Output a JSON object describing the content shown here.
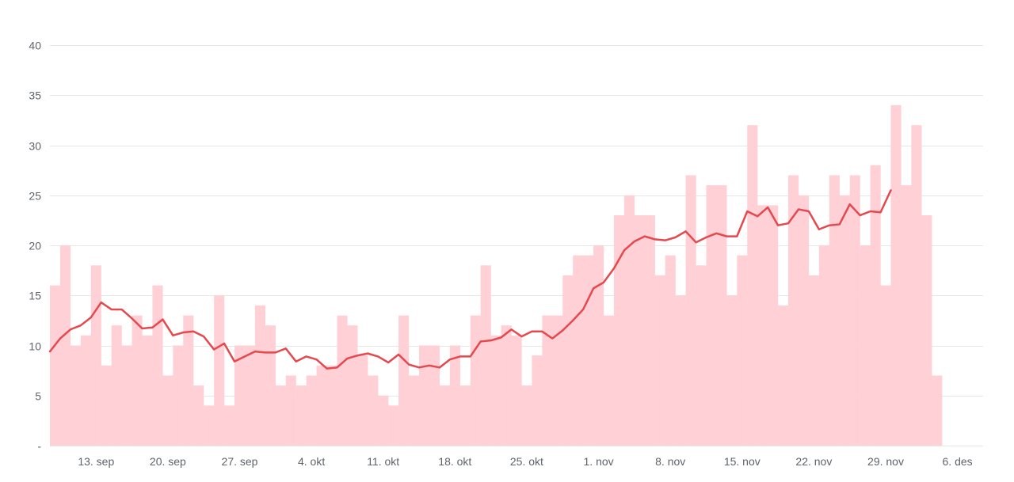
{
  "chart_data": {
    "type": "bar",
    "title": "",
    "xlabel": "",
    "ylabel": "",
    "ylim": [
      0,
      40
    ],
    "y_ticks": [
      {
        "value": 0,
        "label": "-"
      },
      {
        "value": 5,
        "label": "5"
      },
      {
        "value": 10,
        "label": "10"
      },
      {
        "value": 15,
        "label": "15"
      },
      {
        "value": 20,
        "label": "20"
      },
      {
        "value": 25,
        "label": "25"
      },
      {
        "value": 30,
        "label": "30"
      },
      {
        "value": 35,
        "label": "35"
      },
      {
        "value": 40,
        "label": "40"
      }
    ],
    "x_ticks": [
      {
        "date": "2020-09-13",
        "label": "13. sep"
      },
      {
        "date": "2020-09-20",
        "label": "20. sep"
      },
      {
        "date": "2020-09-27",
        "label": "27. sep"
      },
      {
        "date": "2020-10-04",
        "label": "4. okt"
      },
      {
        "date": "2020-10-11",
        "label": "11. okt"
      },
      {
        "date": "2020-10-18",
        "label": "18. okt"
      },
      {
        "date": "2020-10-25",
        "label": "25. okt"
      },
      {
        "date": "2020-11-01",
        "label": "1. nov"
      },
      {
        "date": "2020-11-08",
        "label": "8. nov"
      },
      {
        "date": "2020-11-15",
        "label": "15. nov"
      },
      {
        "date": "2020-11-22",
        "label": "22. nov"
      },
      {
        "date": "2020-11-29",
        "label": "29. nov"
      },
      {
        "date": "2020-12-06",
        "label": "6. des"
      }
    ],
    "x_start": "2020-09-09",
    "x_end": "2020-12-09",
    "grid": true,
    "colors": {
      "bars": "#ffd0d5",
      "line": "#e5484d",
      "grid": "#e6e6e6",
      "tick_text": "#5f6368"
    },
    "series": [
      {
        "type": "bar",
        "start_date": "2020-09-09",
        "values": [
          16,
          20,
          10,
          11,
          18,
          8,
          12,
          10,
          13,
          11,
          16,
          7,
          10,
          13,
          6,
          4,
          15,
          4,
          10,
          10,
          14,
          12,
          6,
          7,
          6,
          7,
          8,
          8,
          13,
          12,
          9,
          7,
          5,
          4,
          13,
          7,
          10,
          10,
          6,
          10,
          6,
          13,
          18,
          11,
          12,
          11,
          6,
          9,
          13,
          13,
          17,
          19,
          19,
          20,
          13,
          23,
          25,
          23,
          23,
          17,
          19,
          15,
          27,
          18,
          26,
          26,
          15,
          19,
          32,
          24,
          24,
          14,
          27,
          25,
          17,
          20,
          27,
          25,
          27,
          20,
          28,
          16,
          34,
          26,
          32,
          23,
          7
        ]
      },
      {
        "type": "line",
        "start_date": "2020-09-09",
        "values": [
          9.4,
          10.7,
          11.6,
          12.0,
          12.8,
          14.3,
          13.6,
          13.6,
          12.7,
          11.7,
          11.8,
          12.6,
          11.0,
          11.3,
          11.4,
          10.9,
          9.6,
          10.2,
          8.4,
          8.9,
          9.4,
          9.3,
          9.3,
          9.7,
          8.4,
          8.9,
          8.6,
          7.7,
          7.8,
          8.7,
          9.0,
          9.2,
          8.9,
          8.3,
          9.1,
          8.1,
          7.8,
          8.0,
          7.8,
          8.6,
          8.9,
          8.9,
          10.4,
          10.5,
          10.8,
          11.6,
          10.9,
          11.4,
          11.4,
          10.7,
          11.5,
          12.5,
          13.6,
          15.7,
          16.3,
          17.7,
          19.5,
          20.4,
          20.9,
          20.6,
          20.5,
          20.8,
          21.4,
          20.3,
          20.8,
          21.2,
          20.9,
          20.9,
          23.4,
          22.9,
          23.8,
          22.0,
          22.2,
          23.6,
          23.4,
          21.6,
          22.0,
          22.1,
          24.1,
          23.0,
          23.4,
          23.3,
          25.5
        ]
      }
    ]
  }
}
